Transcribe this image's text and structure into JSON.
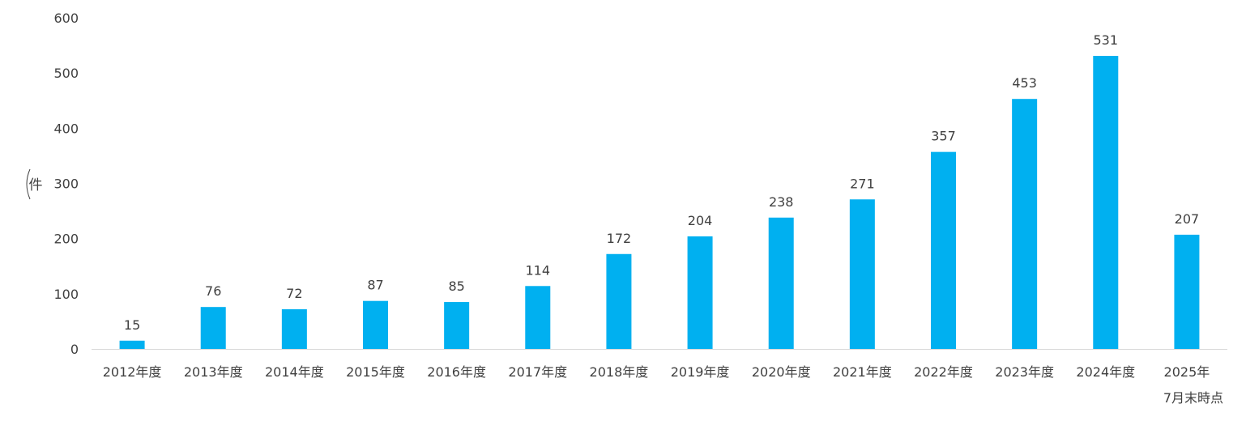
{
  "chart_data": {
    "type": "bar",
    "categories": [
      "2012年度",
      "2013年度",
      "2014年度",
      "2015年度",
      "2016年度",
      "2017年度",
      "2018年度",
      "2019年度",
      "2020年度",
      "2021年度",
      "2022年度",
      "2023年度",
      "2024年度",
      "2025年 7月末時点"
    ],
    "category_lines": [
      [
        "2012年度"
      ],
      [
        "2013年度"
      ],
      [
        "2014年度"
      ],
      [
        "2015年度"
      ],
      [
        "2016年度"
      ],
      [
        "2017年度"
      ],
      [
        "2018年度"
      ],
      [
        "2019年度"
      ],
      [
        "2020年度"
      ],
      [
        "2021年度"
      ],
      [
        "2022年度"
      ],
      [
        "2023年度"
      ],
      [
        "2024年度"
      ],
      [
        "2025年",
        "7月末時点"
      ]
    ],
    "values": [
      15,
      76,
      72,
      87,
      85,
      114,
      172,
      204,
      238,
      271,
      357,
      453,
      531,
      207
    ],
    "ylabel": "件",
    "ylim": [
      0,
      600
    ],
    "yticks": [
      0,
      100,
      200,
      300,
      400,
      500,
      600
    ],
    "bar_color": "#00B0F0",
    "grid": false,
    "data_labels": true
  }
}
